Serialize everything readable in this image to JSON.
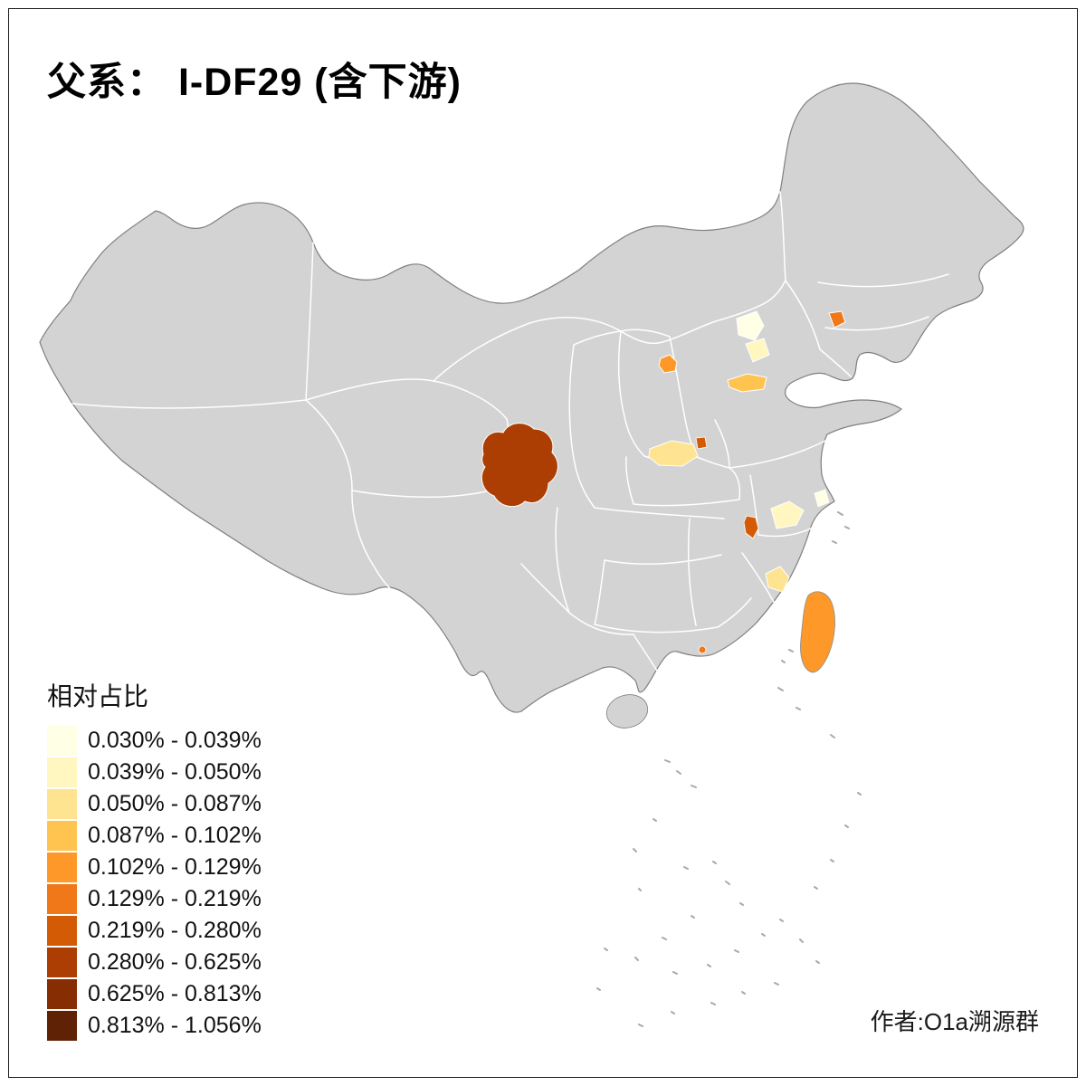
{
  "title": "父系： I-DF29 (含下游)",
  "credit": "作者:O1a溯源群",
  "legend": {
    "title": "相对占比",
    "classes": [
      {
        "label": "0.030% - 0.039%",
        "color": "#FFFFE5"
      },
      {
        "label": "0.039% - 0.050%",
        "color": "#FFF6C0"
      },
      {
        "label": "0.050% - 0.087%",
        "color": "#FEE391"
      },
      {
        "label": "0.087% - 0.102%",
        "color": "#FEC44F"
      },
      {
        "label": "0.102% - 0.129%",
        "color": "#FE9929"
      },
      {
        "label": "0.129% - 0.219%",
        "color": "#F07818"
      },
      {
        "label": "0.219% - 0.280%",
        "color": "#D45B06"
      },
      {
        "label": "0.280% - 0.625%",
        "color": "#AD3E03"
      },
      {
        "label": "0.625% - 0.813%",
        "color": "#862D04"
      },
      {
        "label": "0.813% - 1.056%",
        "color": "#5F2204"
      }
    ]
  },
  "map": {
    "base_fill": "#D3D3D3",
    "province_border_color": "#FFFFFF",
    "outline_color": "#7F7F7F",
    "regions": [
      {
        "id": "sichuan-west",
        "color": "#AD3E03",
        "legend_class": "0.280% - 0.625%"
      },
      {
        "id": "beijing-north",
        "color": "#FFFFE5",
        "legend_class": "0.030% - 0.039%"
      },
      {
        "id": "beijing-southeast",
        "color": "#FFF6C0",
        "legend_class": "0.039% - 0.050%"
      },
      {
        "id": "liaoning-spot",
        "color": "#F07818",
        "legend_class": "0.129% - 0.219%"
      },
      {
        "id": "shanxi-spot",
        "color": "#FE9929",
        "legend_class": "0.102% - 0.129%"
      },
      {
        "id": "south-hebei-patch",
        "color": "#FEC44F",
        "legend_class": "0.087% - 0.102%"
      },
      {
        "id": "henan-patch",
        "color": "#FEE391",
        "legend_class": "0.050% - 0.087%"
      },
      {
        "id": "henan-east-dot",
        "color": "#D45B06",
        "legend_class": "0.219% - 0.280%"
      },
      {
        "id": "anhui-spot",
        "color": "#D45B06",
        "legend_class": "0.219% - 0.280%"
      },
      {
        "id": "jiangsu-patch",
        "color": "#FFF6C0",
        "legend_class": "0.039% - 0.050%"
      },
      {
        "id": "shanghai-patch",
        "color": "#FFFFE5",
        "legend_class": "0.030% - 0.039%"
      },
      {
        "id": "fujian-coast-patch",
        "color": "#FEE391",
        "legend_class": "0.050% - 0.087%"
      },
      {
        "id": "taiwan",
        "color": "#FE9929",
        "legend_class": "0.102% - 0.129%"
      },
      {
        "id": "hongkong-dot",
        "color": "#F07818",
        "legend_class": "0.129% - 0.219%"
      }
    ]
  }
}
